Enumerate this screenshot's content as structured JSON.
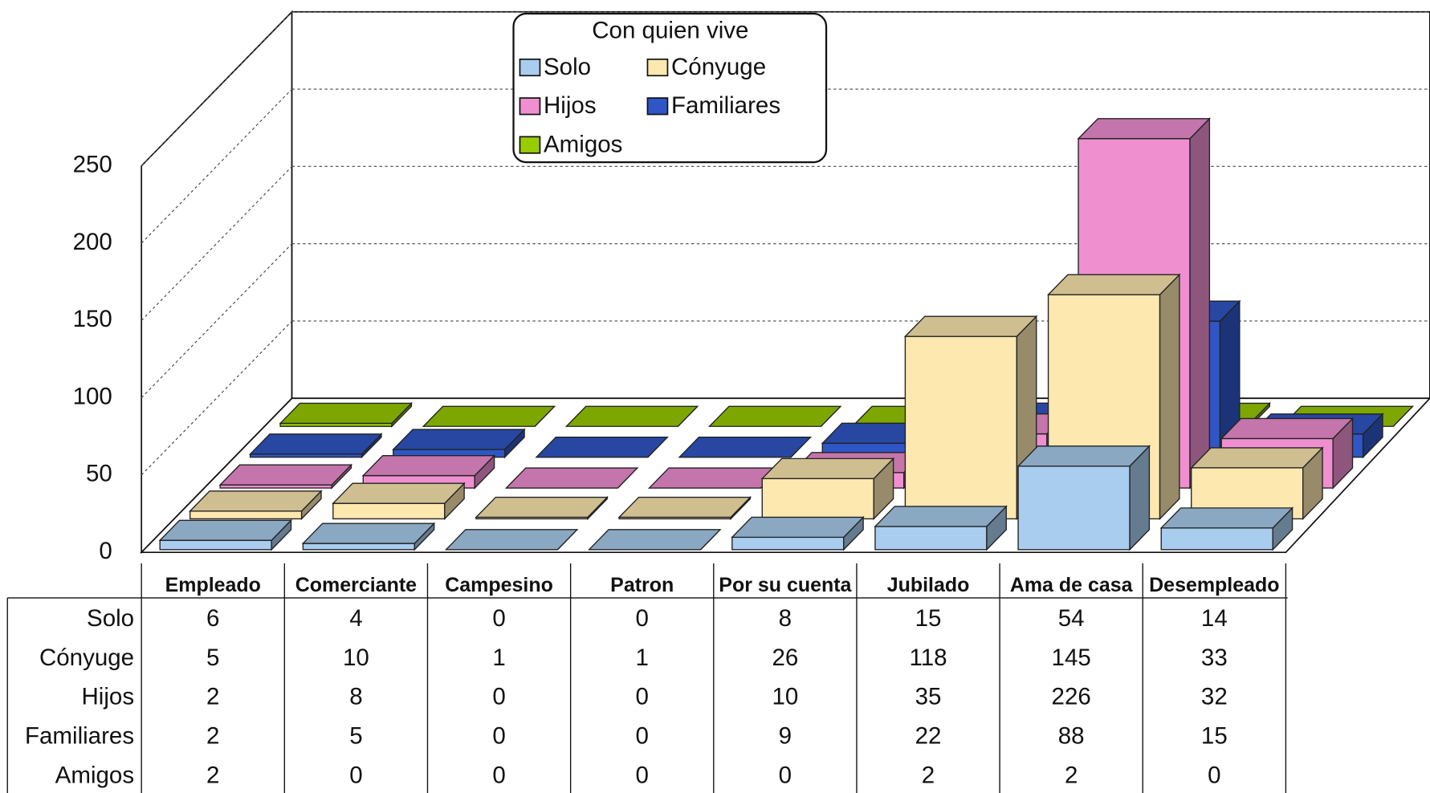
{
  "chart_data": {
    "type": "bar",
    "legend_title": "Con quien vive",
    "categories": [
      "Empleado",
      "Comerciante",
      "Campesino",
      "Patron",
      "Por su cuenta",
      "Jubilado",
      "Ama de casa",
      "Desempleado"
    ],
    "series": [
      {
        "name": "Solo",
        "color": "#a9cdee",
        "values": [
          6,
          4,
          0,
          0,
          8,
          15,
          54,
          14
        ]
      },
      {
        "name": "Cónyuge",
        "color": "#fde8b0",
        "values": [
          5,
          10,
          1,
          1,
          26,
          118,
          145,
          33
        ]
      },
      {
        "name": "Hijos",
        "color": "#ef8fd0",
        "values": [
          2,
          8,
          0,
          0,
          10,
          35,
          226,
          32
        ]
      },
      {
        "name": "Familiares",
        "color": "#2f56c6",
        "values": [
          2,
          5,
          0,
          0,
          9,
          22,
          88,
          15
        ]
      },
      {
        "name": "Amigos",
        "color": "#99cc00",
        "values": [
          2,
          0,
          0,
          0,
          0,
          2,
          2,
          0
        ]
      }
    ],
    "ylim": [
      0,
      250
    ],
    "yticks": [
      0,
      50,
      100,
      150,
      200,
      250
    ],
    "grid": true
  }
}
